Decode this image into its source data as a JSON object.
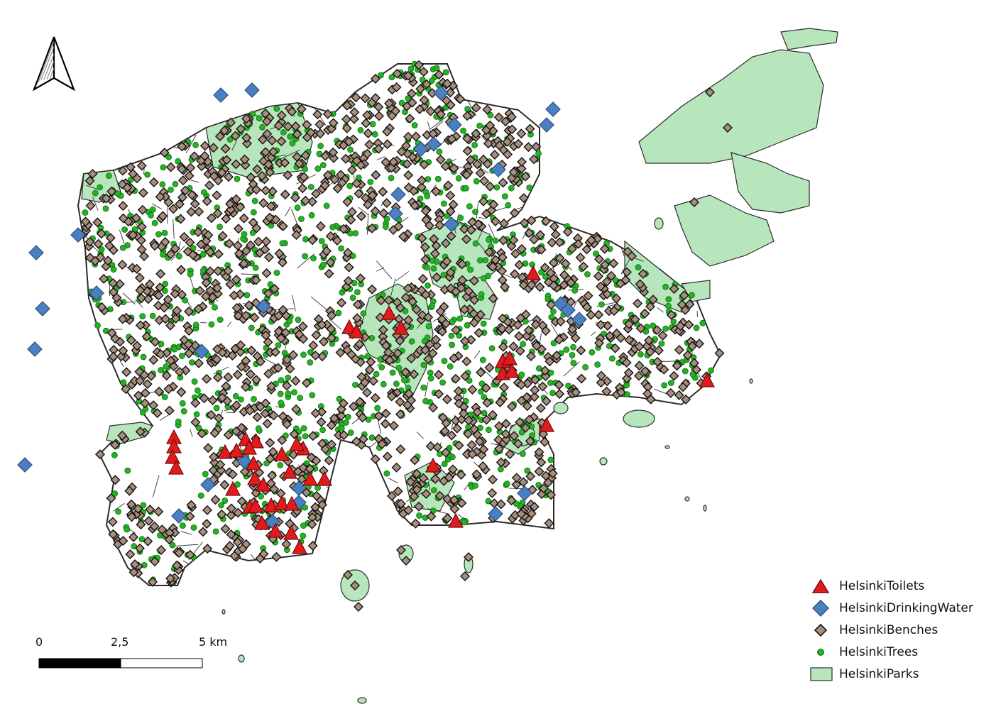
{
  "map": {
    "legend": [
      {
        "label": "HelsinkiToilets",
        "symbol": "red-triangle",
        "color": "#e31a1c"
      },
      {
        "label": "HelsinkiDrinkingWater",
        "symbol": "blue-diamond",
        "color": "#4a7fc1"
      },
      {
        "label": "HelsinkiBenches",
        "symbol": "brown-diamond",
        "color": "#a88f7d"
      },
      {
        "label": "HelsinkiTrees",
        "symbol": "green-dot",
        "color": "#22b422"
      },
      {
        "label": "HelsinkiParks",
        "symbol": "park-fill",
        "color": "#b8e6bc"
      }
    ],
    "scale_bar": {
      "labels": [
        "0",
        "2,5",
        "5 km"
      ]
    },
    "north_arrow": {
      "icon": "north-arrow-icon"
    },
    "colors": {
      "parks_fill": "#b8e6bc",
      "parks_stroke": "#2c2c2c",
      "roads": "#333333",
      "trees": "#22b422",
      "benches": "#a88f7d",
      "drinking_water": "#4a7fc1",
      "toilets": "#e31a1c"
    }
  }
}
